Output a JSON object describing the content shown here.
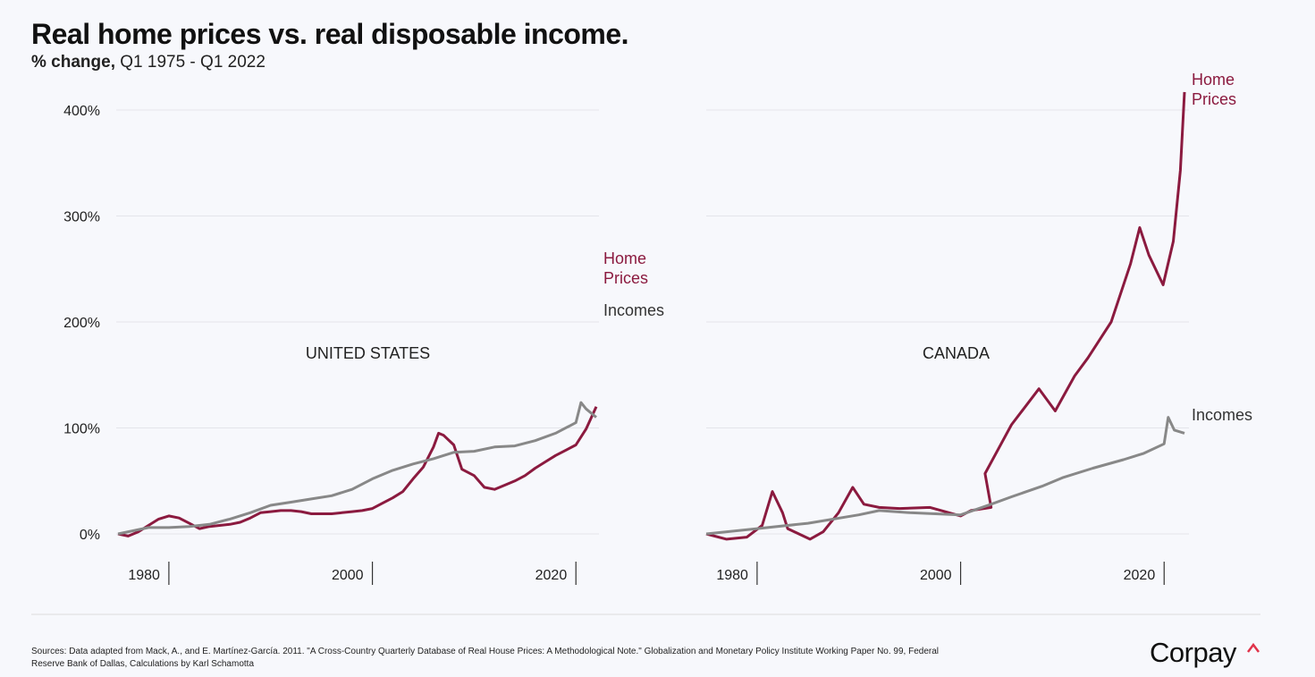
{
  "title": "Real home prices vs. real disposable income.",
  "subtitle_unit": "% change,",
  "subtitle": "Q1 1975 - Q1 2022",
  "source": "Sources: Data adapted from Mack, A., and E. Martínez-García. 2011. \"A Cross-Country Quarterly Database of Real House Prices: A Methodological Note.\" Globalization and Monetary Policy Institute Working Paper No. 99, Federal Reserve Bank of Dallas, Calculations by Karl Schamotta",
  "logo": "Corpay",
  "chart_data": [
    {
      "type": "line",
      "title": "UNITED STATES",
      "xlim": [
        1975,
        2022
      ],
      "xticks": [
        1980,
        2000,
        2020
      ],
      "ylim": [
        -10,
        420
      ],
      "yticks": [
        {
          "value": 0,
          "label": "0%"
        },
        {
          "value": 100,
          "label": "100%"
        },
        {
          "value": 200,
          "label": "200%"
        },
        {
          "value": 300,
          "label": "300%"
        },
        {
          "value": 400,
          "label": "400%"
        }
      ],
      "grid": true,
      "series": [
        {
          "name": "Home Prices",
          "color": "#8b1a3f",
          "x": [
            1975,
            1976,
            1977,
            1978,
            1979,
            1980,
            1981,
            1982,
            1983,
            1984,
            1985,
            1986,
            1987,
            1988,
            1989,
            1990,
            1991,
            1992,
            1993,
            1994,
            1995,
            1996,
            1997,
            1998,
            1999,
            2000,
            2001,
            2002,
            2003,
            2004,
            2005,
            2006,
            2006.5,
            2007,
            2008,
            2008.8,
            2010,
            2011,
            2012,
            2013,
            2014,
            2015,
            2016,
            2017,
            2018,
            2019,
            2020,
            2021,
            2022
          ],
          "values": [
            0,
            -2,
            2,
            8,
            14,
            17,
            15,
            10,
            5,
            7,
            8,
            9,
            11,
            15,
            20,
            21,
            22,
            22,
            21,
            19,
            19,
            19,
            20,
            21,
            22,
            24,
            29,
            34,
            40,
            52,
            63,
            82,
            95,
            93,
            84,
            61,
            55,
            44,
            42,
            46,
            50,
            55,
            62,
            68,
            74,
            79,
            84,
            99,
            120
          ]
        },
        {
          "name": "Incomes",
          "color": "#888888",
          "x": [
            1975,
            1978,
            1980,
            1982,
            1984,
            1986,
            1988,
            1990,
            1992,
            1994,
            1996,
            1998,
            2000,
            2002,
            2004,
            2006,
            2008,
            2010,
            2012,
            2014,
            2016,
            2018,
            2020,
            2020.5,
            2021,
            2022
          ],
          "values": [
            0,
            6,
            6,
            7,
            9,
            14,
            20,
            27,
            30,
            33,
            36,
            42,
            52,
            60,
            66,
            71,
            77,
            78,
            82,
            83,
            88,
            95,
            105,
            124,
            118,
            110
          ]
        }
      ]
    },
    {
      "type": "line",
      "title": "CANADA",
      "xlim": [
        1975,
        2022
      ],
      "xticks": [
        1980,
        2000,
        2020
      ],
      "ylim": [
        -10,
        420
      ],
      "grid": true,
      "series": [
        {
          "name": "Home Prices",
          "color": "#8b1a3f",
          "x": [
            1975,
            1977,
            1979,
            1980.5,
            1981.5,
            1982.5,
            1983,
            1985.2,
            1986.5,
            1988,
            1989.4,
            1990.5,
            1992,
            1994,
            1997,
            2000,
            2001,
            2003,
            2002.4,
            2005,
            2007.7,
            2009.3,
            2011.2,
            2012.5,
            2014.8,
            2016.7,
            2017.6,
            2018.5,
            2019.9,
            2020.9,
            2021.6,
            2022
          ],
          "values": [
            0,
            -5,
            -3,
            8,
            40,
            20,
            5,
            -5,
            2,
            20,
            44,
            28,
            25,
            24,
            25,
            17,
            22,
            25,
            57,
            103,
            137,
            116,
            149,
            166,
            200,
            255,
            289,
            263,
            235,
            276,
            343,
            417
          ]
        },
        {
          "name": "Incomes",
          "color": "#888888",
          "x": [
            1975,
            1980,
            1985,
            1990,
            1992,
            1995,
            2000,
            2003,
            2005,
            2008,
            2010,
            2013,
            2016,
            2018,
            2020,
            2020.4,
            2021,
            2022
          ],
          "values": [
            0,
            5,
            10,
            18,
            22,
            20,
            18,
            28,
            35,
            45,
            53,
            62,
            70,
            76,
            85,
            110,
            98,
            95
          ]
        }
      ]
    }
  ]
}
